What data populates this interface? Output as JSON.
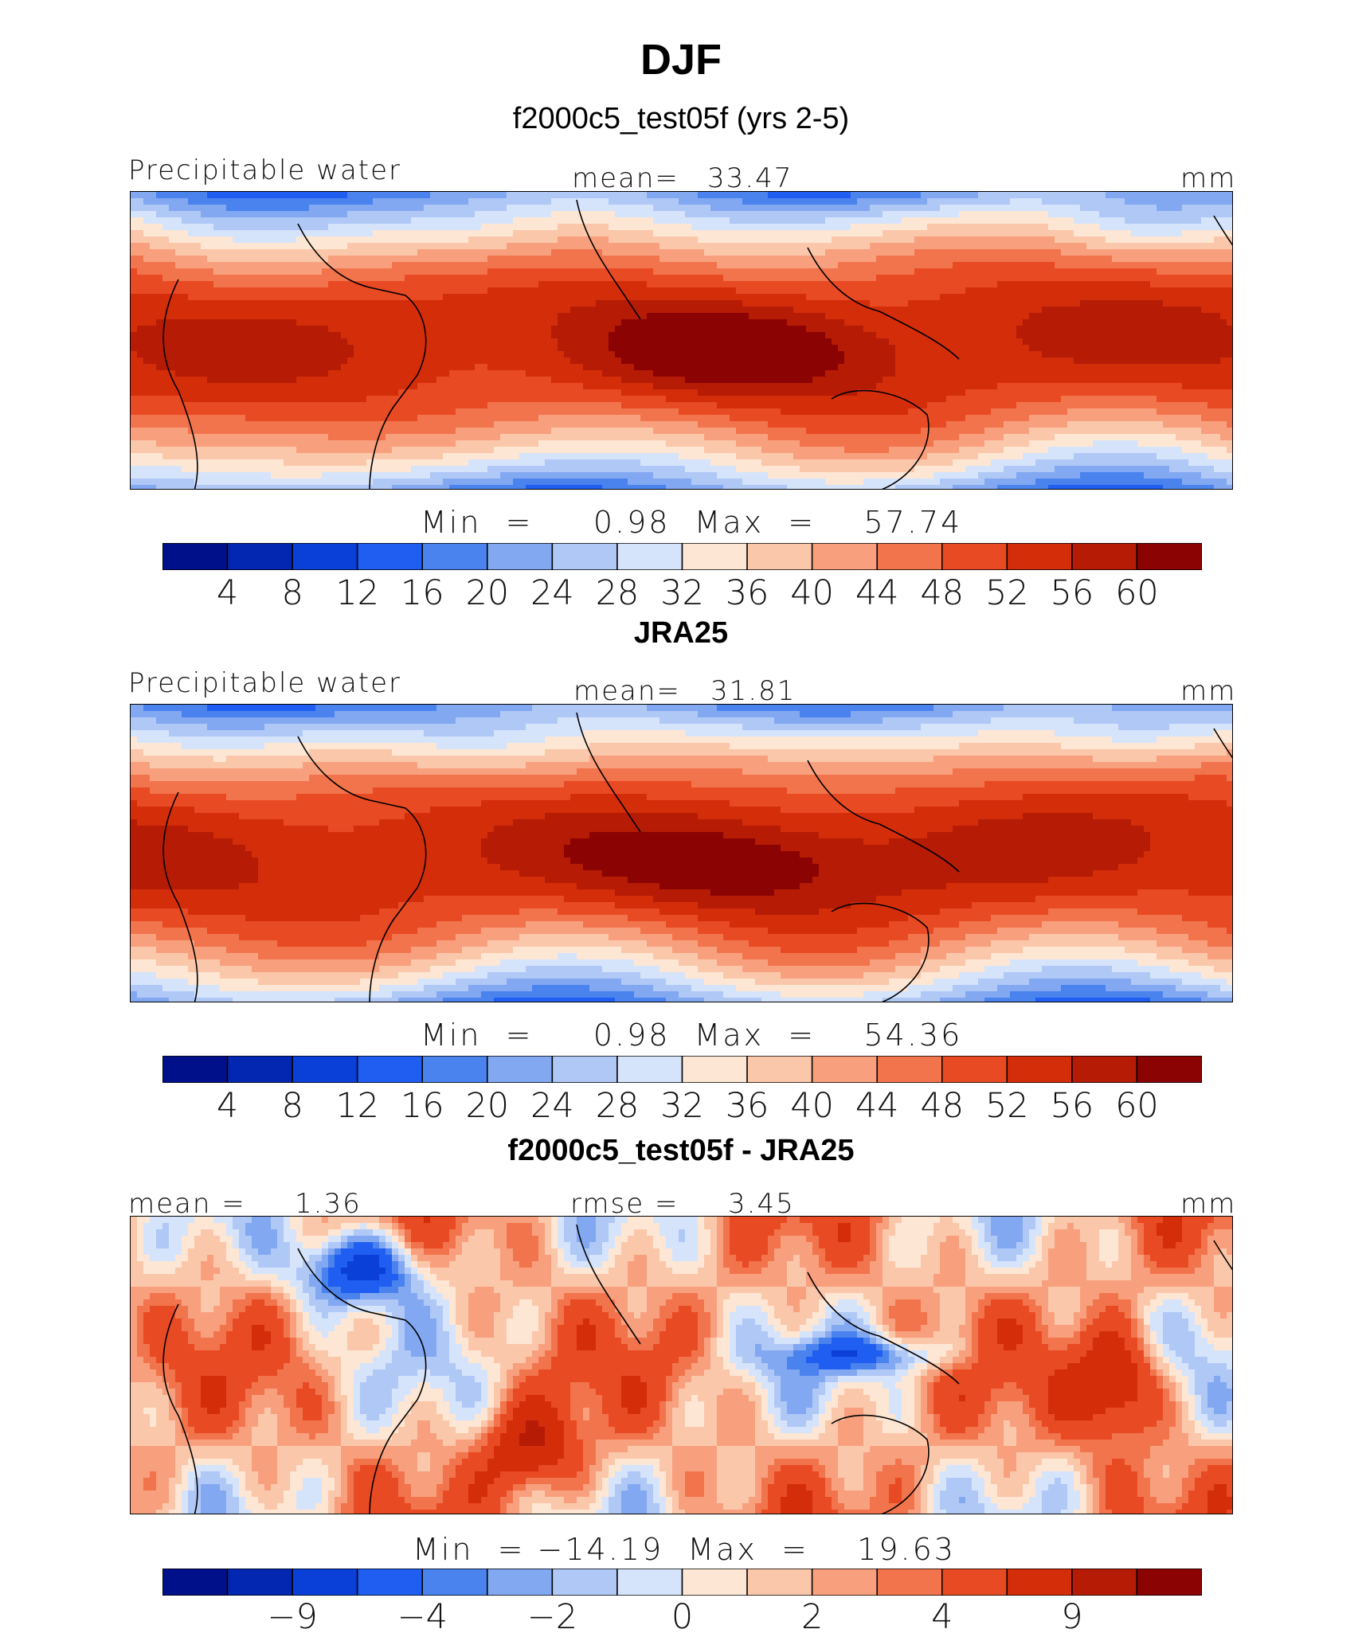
{
  "title": "DJF",
  "colors": {
    "palette": [
      "#00108a",
      "#0327b0",
      "#0a3fd8",
      "#1f5ef0",
      "#4a82ee",
      "#82a8f2",
      "#b0c8f6",
      "#d6e4fb",
      "#fde6d3",
      "#fbc7aa",
      "#f8a07e",
      "#f2744c",
      "#e84a24",
      "#d42d0a",
      "#b51b05",
      "#8c0303"
    ]
  },
  "panels": [
    {
      "title": "f2000c5_test05f (yrs 2-5)",
      "variable": "Precipitable water",
      "units": "mm",
      "mean_label": "mean=",
      "mean_value": "33.47",
      "minmax": "Min  =     0.98  Max  =    57.74"
    },
    {
      "title": "JRA25",
      "variable": "Precipitable water",
      "units": "mm",
      "mean_label": "mean=",
      "mean_value": "31.81",
      "minmax": "Min  =     0.98  Max  =    54.36"
    },
    {
      "title": "f2000c5_test05f - JRA25",
      "left_label": "mean  =",
      "left_value": "1.36",
      "rmse_label": "rmse  =",
      "rmse_value": "3.45",
      "units": "mm",
      "minmax": "Min  = −14.19  Max  =    19.63"
    }
  ],
  "chart_data": [
    {
      "type": "heatmap",
      "title": "f2000c5_test05f (yrs 2-5)",
      "variable": "Precipitable water",
      "units": "mm",
      "mean": 33.47,
      "min": 0.98,
      "max": 57.74,
      "colorbar_levels": [
        4,
        8,
        12,
        16,
        20,
        24,
        28,
        32,
        36,
        40,
        44,
        48,
        52,
        56,
        60
      ],
      "colorbar_tick_labels": [
        "4",
        "8",
        "12",
        "16",
        "20",
        "24",
        "28",
        "32",
        "36",
        "40",
        "44",
        "48",
        "52",
        "56",
        "60"
      ]
    },
    {
      "type": "heatmap",
      "title": "JRA25",
      "variable": "Precipitable water",
      "units": "mm",
      "mean": 31.81,
      "min": 0.98,
      "max": 54.36,
      "colorbar_levels": [
        4,
        8,
        12,
        16,
        20,
        24,
        28,
        32,
        36,
        40,
        44,
        48,
        52,
        56,
        60
      ],
      "colorbar_tick_labels": [
        "4",
        "8",
        "12",
        "16",
        "20",
        "24",
        "28",
        "32",
        "36",
        "40",
        "44",
        "48",
        "52",
        "56",
        "60"
      ]
    },
    {
      "type": "heatmap",
      "title": "f2000c5_test05f - JRA25",
      "units": "mm",
      "mean": 1.36,
      "rmse": 3.45,
      "min": -14.19,
      "max": 19.63,
      "colorbar_levels": [
        -12,
        -9,
        -6,
        -4,
        -3,
        -2,
        -1,
        0,
        1,
        2,
        3,
        4,
        6,
        9,
        12
      ],
      "colorbar_tick_labels": [
        "−9",
        "−4",
        "−2",
        "0",
        "2",
        "4",
        "9"
      ],
      "colorbar_tick_index": [
        1,
        3,
        5,
        7,
        9,
        11,
        13
      ]
    }
  ]
}
